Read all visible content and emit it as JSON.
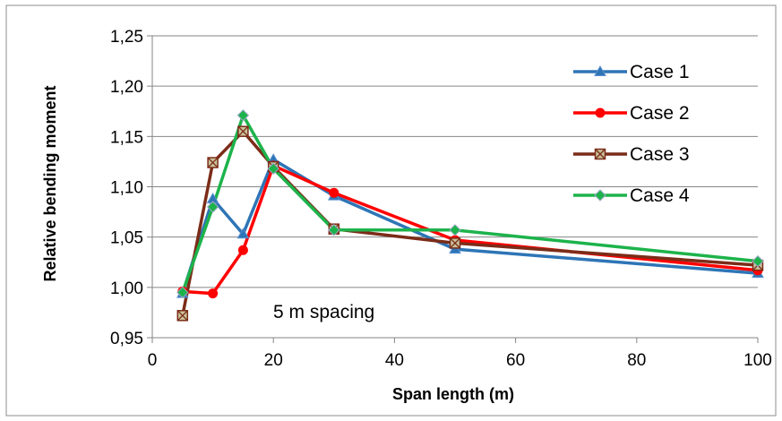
{
  "chart_data": {
    "type": "line",
    "title": "",
    "xlabel": "Span length (m)",
    "ylabel": "Relative bending moment",
    "xlim": [
      0,
      100
    ],
    "ylim": [
      0.95,
      1.25
    ],
    "xticks": [
      0,
      20,
      40,
      60,
      80,
      100
    ],
    "yticks": [
      0.95,
      1.0,
      1.05,
      1.1,
      1.15,
      1.2,
      1.25
    ],
    "xtick_labels": [
      "0",
      "20",
      "40",
      "60",
      "80",
      "100"
    ],
    "ytick_labels": [
      "0,95",
      "1,00",
      "1,05",
      "1,10",
      "1,15",
      "1,20",
      "1,25"
    ],
    "grid": "horizontal",
    "legend_position": "top-right",
    "annotation": "5 m spacing",
    "x": [
      5,
      10,
      15,
      20,
      30,
      50,
      100
    ],
    "series": [
      {
        "name": "Case 1",
        "color": "#2E75B6",
        "marker": "triangle",
        "values": [
          0.994,
          1.088,
          1.053,
          1.127,
          1.091,
          1.038,
          1.014
        ]
      },
      {
        "name": "Case 2",
        "color": "#FF0000",
        "marker": "circle",
        "values": [
          0.996,
          0.994,
          1.037,
          1.121,
          1.094,
          1.047,
          1.017
        ]
      },
      {
        "name": "Case 3",
        "color": "#7B2C18",
        "marker": "square-x",
        "values": [
          0.972,
          1.124,
          1.155,
          1.12,
          1.058,
          1.044,
          1.022
        ]
      },
      {
        "name": "Case 4",
        "color": "#1DB34B",
        "marker": "diamond",
        "values": [
          0.995,
          1.08,
          1.171,
          1.118,
          1.057,
          1.057,
          1.026
        ]
      }
    ]
  }
}
